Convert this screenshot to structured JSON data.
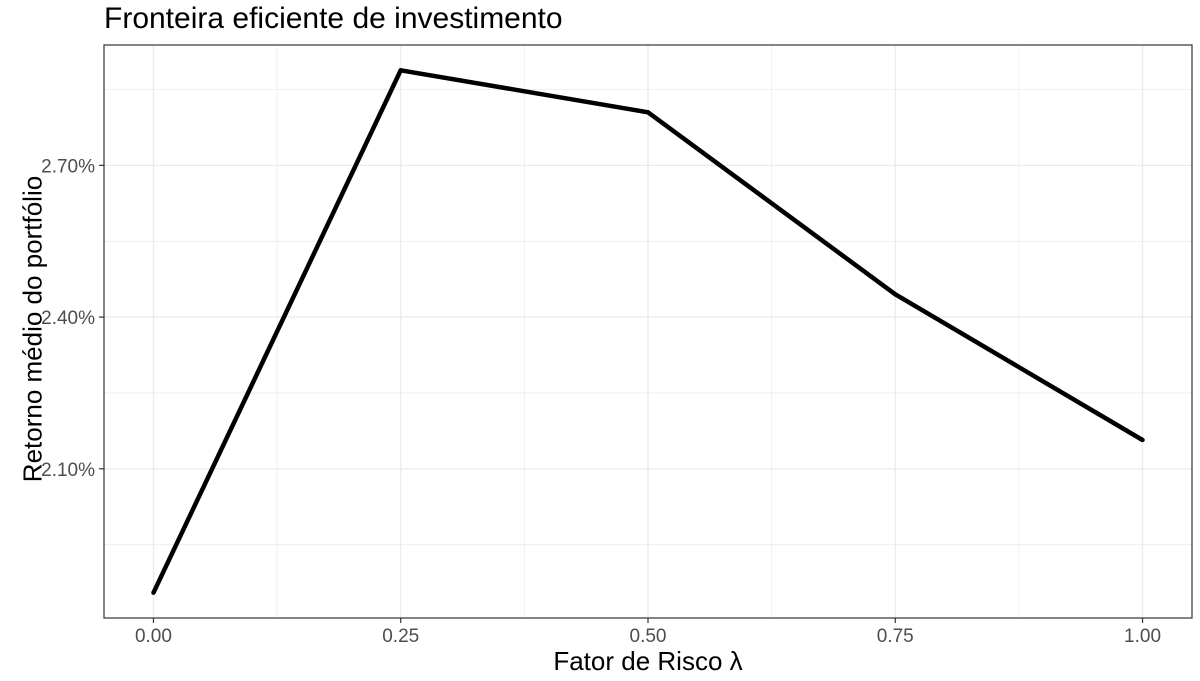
{
  "chart_data": {
    "type": "line",
    "title": "Fronteira eficiente de investimento",
    "xlabel": "Fator de Risco λ",
    "ylabel": "Retorno médio do portfólio",
    "x": [
      0.0,
      0.25,
      0.5,
      0.75,
      1.0
    ],
    "series": [
      {
        "values": [
          0.01855,
          0.02888,
          0.02805,
          0.02445,
          0.02157
        ]
      }
    ],
    "xlim": [
      -0.05,
      1.05
    ],
    "ylim": [
      0.01805,
      0.02938
    ],
    "x_ticks": [
      0.0,
      0.25,
      0.5,
      0.75,
      1.0
    ],
    "x_tick_labels": [
      "0.00",
      "0.25",
      "0.50",
      "0.75",
      "1.00"
    ],
    "y_ticks": [
      0.021,
      0.024,
      0.027
    ],
    "y_tick_labels": [
      "2.10%",
      "2.40%",
      "2.70%"
    ],
    "grid": true,
    "line_color": "#000000",
    "grid_color": "#ebebeb"
  }
}
